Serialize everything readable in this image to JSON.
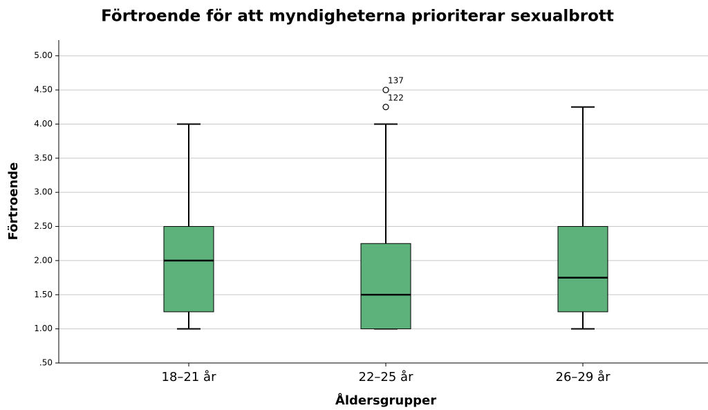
{
  "chart_data": {
    "type": "box",
    "title": "Förtroende för att myndigheterna prioriterar sexualbrott",
    "x_label": "Åldersgrupper",
    "y_label": "Förtroende",
    "categories": [
      "18–21 år",
      "22–25 år",
      "26–29 år"
    ],
    "boxes": [
      {
        "min": 1,
        "q1": 1.25,
        "median": 2,
        "q3": 2.5,
        "max": 4
      },
      {
        "min": 1,
        "q1": 1,
        "median": 1.5,
        "q3": 2.25,
        "max": 4
      },
      {
        "min": 1,
        "q1": 1.25,
        "median": 1.75,
        "q3": 2.5,
        "max": 4.25
      }
    ],
    "outliers": [
      [],
      [
        {
          "value": 4.5,
          "case": "137"
        },
        {
          "value": 4.25,
          "case": "122"
        }
      ],
      []
    ],
    "color": "#5db27b",
    "ylim": [
      0.5,
      5.23
    ],
    "yticks": [
      {
        "value": 0.5,
        "label": ".50"
      },
      {
        "value": 1,
        "label": "1.00"
      },
      {
        "value": 1.5,
        "label": "1.50"
      },
      {
        "value": 2,
        "label": "2.00"
      },
      {
        "value": 2.5,
        "label": "2.50"
      },
      {
        "value": 3,
        "label": "3.00"
      },
      {
        "value": 3.5,
        "label": "3.50"
      },
      {
        "value": 4,
        "label": "4.00"
      },
      {
        "value": 4.5,
        "label": "4.50"
      },
      {
        "value": 5,
        "label": "5.00"
      }
    ],
    "grid": true
  }
}
